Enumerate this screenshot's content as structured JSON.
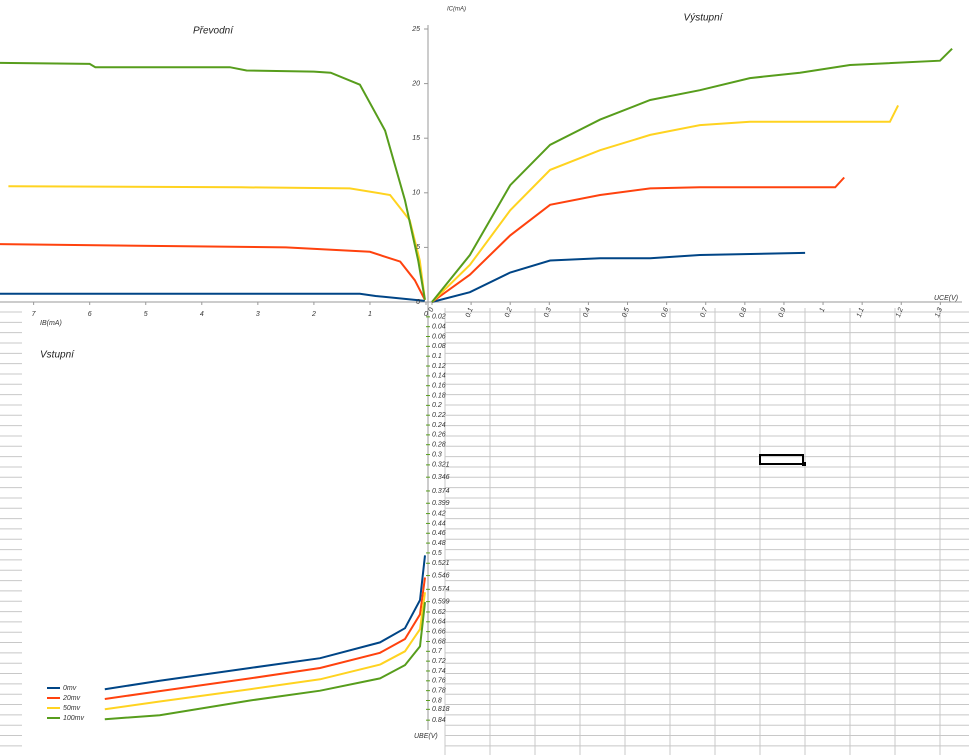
{
  "chart_data": [
    {
      "type": "line",
      "title": "Převodní",
      "xlabel": "IB(mA)",
      "xlim": [
        7.6,
        0
      ],
      "ylim": [
        0,
        25
      ],
      "xticks": [
        7,
        6,
        5,
        4,
        3,
        2,
        1,
        0
      ],
      "series": [
        {
          "color": "#004586",
          "x": [
            7.6,
            1.18,
            0.9,
            0.02
          ],
          "values": [
            0.75,
            0.75,
            0.55,
            0.1
          ]
        },
        {
          "color": "#ff420e",
          "x": [
            7.6,
            2.5,
            1.0,
            0.46,
            0.2,
            0.02
          ],
          "values": [
            5.3,
            5.0,
            4.6,
            3.7,
            2.0,
            0.2
          ]
        },
        {
          "color": "#ffd320",
          "x": [
            7.45,
            3.3,
            1.36,
            0.64,
            0.29,
            0.11,
            0.02
          ],
          "values": [
            10.6,
            10.5,
            10.4,
            9.8,
            7.5,
            3.8,
            0.2
          ]
        },
        {
          "color": "#579d1c",
          "x": [
            7.6,
            6.0,
            5.9,
            3.5,
            3.2,
            2.0,
            1.7,
            1.18,
            0.73,
            0.375,
            0.14,
            0.02
          ],
          "values": [
            21.9,
            21.8,
            21.5,
            21.5,
            21.2,
            21.1,
            21.0,
            19.9,
            15.7,
            9.3,
            3.8,
            0.2
          ]
        }
      ]
    },
    {
      "type": "line",
      "title": "Výstupní",
      "xlabel": "UCE(V)",
      "ylabel": "IC(mA)",
      "xlim": [
        0,
        1.34
      ],
      "ylim": [
        0,
        25
      ],
      "xticks": [
        0,
        0.1,
        0.2,
        0.3,
        0.4,
        0.5,
        0.6,
        0.7,
        0.8,
        0.9,
        1,
        1.1,
        1.2,
        1.3
      ],
      "yticks": [
        0,
        5,
        10,
        15,
        20,
        25
      ],
      "series": [
        {
          "color": "#004586",
          "x": [
            0,
            0.097,
            0.2,
            0.302,
            0.43,
            0.506,
            0.558,
            0.685,
            0.954
          ],
          "values": [
            0,
            0.9,
            2.7,
            3.8,
            4.0,
            4.0,
            4.0,
            4.3,
            4.5
          ]
        },
        {
          "color": "#ff420e",
          "x": [
            0,
            0.097,
            0.2,
            0.302,
            0.43,
            0.558,
            0.685,
            1.031,
            1.054
          ],
          "values": [
            0,
            2.5,
            6.1,
            8.9,
            9.8,
            10.4,
            10.5,
            10.5,
            11.4
          ]
        },
        {
          "color": "#ffd320",
          "x": [
            0,
            0.097,
            0.2,
            0.302,
            0.43,
            0.558,
            0.685,
            0.813,
            1.171,
            1.192
          ],
          "values": [
            0,
            3.4,
            8.4,
            12.1,
            13.9,
            15.3,
            16.2,
            16.5,
            16.5,
            18.0
          ]
        },
        {
          "color": "#579d1c",
          "x": [
            0,
            0.097,
            0.2,
            0.302,
            0.43,
            0.558,
            0.685,
            0.813,
            0.941,
            1.069,
            1.299,
            1.33
          ],
          "values": [
            0,
            4.3,
            10.7,
            14.4,
            16.7,
            18.5,
            19.4,
            20.5,
            21.0,
            21.7,
            22.1,
            23.2
          ]
        }
      ]
    },
    {
      "type": "line",
      "title": "Vstupní",
      "ylabel": "UBE(V)",
      "legend": "bottom-left",
      "xlim": [
        7.6,
        0
      ],
      "ylim": [
        0,
        0.86
      ],
      "yticks": [
        0.02,
        0.04,
        0.06,
        0.08,
        0.1,
        0.12,
        0.14,
        0.16,
        0.18,
        0.2,
        0.22,
        0.24,
        0.26,
        0.28,
        0.3,
        0.321,
        0.346,
        0.374,
        0.399,
        0.42,
        0.44,
        0.46,
        0.48,
        0.5,
        0.521,
        0.546,
        0.574,
        0.599,
        0.62,
        0.64,
        0.66,
        0.68,
        0.7,
        0.72,
        0.74,
        0.76,
        0.78,
        0.8,
        0.818,
        0.84
      ],
      "series": [
        {
          "name": "0mv",
          "color": "#004586",
          "x": [
            5.73,
            4.75,
            3.14,
            1.89,
            0.82,
            0.375,
            0.107,
            0.018
          ],
          "values": [
            0.777,
            0.76,
            0.734,
            0.714,
            0.682,
            0.653,
            0.596,
            0.505
          ]
        },
        {
          "name": "20mv",
          "color": "#ff420e",
          "x": [
            5.73,
            4.75,
            3.14,
            1.89,
            0.82,
            0.375,
            0.107,
            0.018
          ],
          "values": [
            0.797,
            0.781,
            0.755,
            0.734,
            0.703,
            0.675,
            0.625,
            0.55
          ]
        },
        {
          "name": "50mv",
          "color": "#ffd320",
          "x": [
            5.73,
            4.75,
            3.14,
            1.89,
            0.82,
            0.375,
            0.107,
            0.018
          ],
          "values": [
            0.818,
            0.802,
            0.777,
            0.757,
            0.727,
            0.7,
            0.655,
            0.58
          ]
        },
        {
          "name": "100mv",
          "color": "#579d1c",
          "x": [
            5.73,
            4.75,
            3.14,
            1.89,
            0.82,
            0.375,
            0.107,
            0.018
          ],
          "values": [
            0.838,
            0.83,
            0.8,
            0.78,
            0.755,
            0.728,
            0.69,
            0.6
          ]
        }
      ]
    }
  ]
}
